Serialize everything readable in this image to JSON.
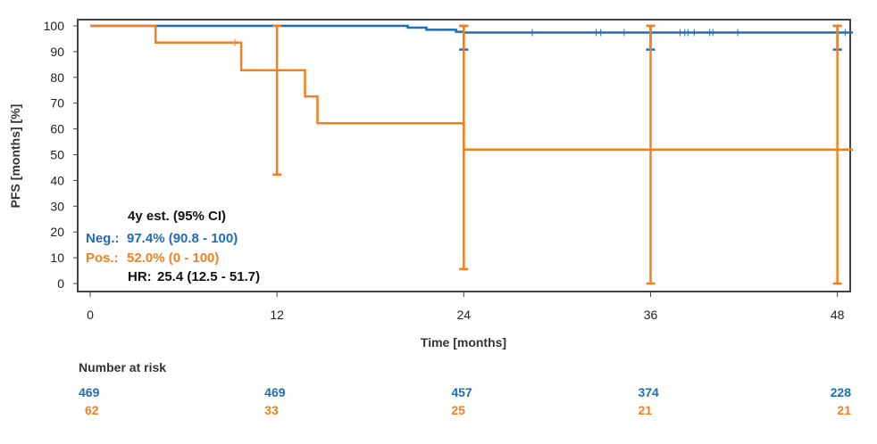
{
  "chart_data": {
    "type": "kaplan-meier step line",
    "xlabel": "Time [months]",
    "ylabel": "PFS [months] [%]",
    "xlim": [
      0,
      49
    ],
    "ylim": [
      0,
      100
    ],
    "xticks": [
      0,
      12,
      24,
      36,
      48
    ],
    "yticks": [
      0,
      10,
      20,
      30,
      40,
      50,
      60,
      70,
      80,
      90,
      100
    ],
    "grid": false,
    "colors": {
      "neg": "#1f6db5",
      "pos": "#f28021"
    },
    "series": [
      {
        "key": "neg",
        "steps": [
          [
            0,
            100
          ],
          [
            20.4,
            99.3
          ],
          [
            21.6,
            98.5
          ],
          [
            23.5,
            97.7
          ],
          [
            24,
            97.4
          ],
          [
            49,
            97.4
          ]
        ],
        "censors": [
          28.4,
          32.5,
          32.8,
          34.3,
          37.9,
          38.2,
          38.4,
          38.8,
          39.8,
          40,
          41.6,
          48.5
        ],
        "ci": [
          {
            "t": 24,
            "lo": 90.8,
            "hi": 100
          },
          {
            "t": 36,
            "lo": 90.8,
            "hi": 100
          },
          {
            "t": 48,
            "lo": 90.8,
            "hi": 100
          }
        ]
      },
      {
        "key": "pos",
        "steps": [
          [
            0,
            100
          ],
          [
            4.2,
            93.5
          ],
          [
            9.7,
            82.8
          ],
          [
            13.8,
            72.6
          ],
          [
            14.6,
            62.2
          ],
          [
            24,
            52.0
          ],
          [
            49,
            52.0
          ]
        ],
        "censors": [
          9.3
        ],
        "ci": [
          {
            "t": 12,
            "lo": 42.3,
            "hi": 100
          },
          {
            "t": 24,
            "lo": 5.6,
            "hi": 100
          },
          {
            "t": 36,
            "lo": 0,
            "hi": 100
          },
          {
            "t": 48,
            "lo": 0,
            "hi": 100
          }
        ]
      }
    ],
    "annotation": {
      "header": "4y est. (95% CI)",
      "neg_label": "Neg.:",
      "neg_value": "97.4% (90.8 - 100)",
      "pos_label": "Pos.:",
      "pos_value": "52.0% (0 - 100)",
      "hr_label": "HR:",
      "hr_value": "25.4 (12.5 - 51.7)"
    },
    "risk_table": {
      "title": "Number at risk",
      "times": [
        0,
        12,
        24,
        36,
        48
      ],
      "neg": [
        "469",
        "469",
        "457",
        "374",
        "228"
      ],
      "pos": [
        "62",
        "33",
        "25",
        "21",
        "21"
      ]
    }
  }
}
